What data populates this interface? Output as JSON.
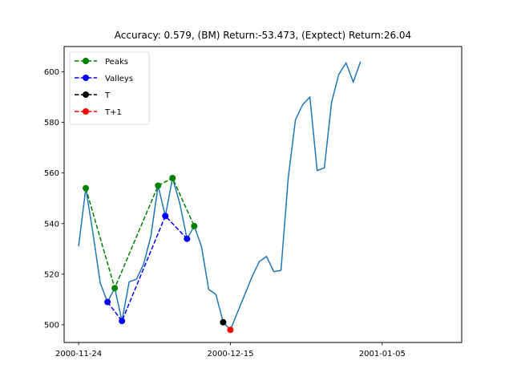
{
  "chart_data": {
    "type": "line",
    "title": "Accuracy: 0.579, (BM) Return:-53.473, (Exptect) Return:26.04",
    "xlabel": "",
    "ylabel": "",
    "x_start": "2000-11-24",
    "x_end": "2001-01-14",
    "xlim": [
      "2000-11-22",
      "2001-01-16"
    ],
    "ylim": [
      493,
      610
    ],
    "x_ticks": [
      "2000-11-24",
      "2000-12-15",
      "2001-01-05"
    ],
    "y_ticks": [
      500,
      520,
      540,
      560,
      580,
      600
    ],
    "legend_position": "upper-left",
    "series": [
      {
        "role": "price",
        "color": "#1f77b4",
        "style": "solid",
        "points": [
          [
            "2000-11-24",
            531
          ],
          [
            "2000-11-25",
            554
          ],
          [
            "2000-11-26",
            536
          ],
          [
            "2000-11-27",
            516.5
          ],
          [
            "2000-11-28",
            509
          ],
          [
            "2000-11-29",
            514.5
          ],
          [
            "2000-11-30",
            501.5
          ],
          [
            "2000-12-01",
            517
          ],
          [
            "2000-12-02",
            518
          ],
          [
            "2000-12-03",
            524
          ],
          [
            "2000-12-04",
            535
          ],
          [
            "2000-12-05",
            555
          ],
          [
            "2000-12-06",
            543
          ],
          [
            "2000-12-07",
            558
          ],
          [
            "2000-12-08",
            548
          ],
          [
            "2000-12-09",
            534
          ],
          [
            "2000-12-10",
            539
          ],
          [
            "2000-12-11",
            531
          ],
          [
            "2000-12-12",
            514
          ],
          [
            "2000-12-13",
            512
          ],
          [
            "2000-12-14",
            501
          ],
          [
            "2000-12-15",
            498
          ],
          [
            "2000-12-16",
            505
          ],
          [
            "2000-12-17",
            512
          ],
          [
            "2000-12-18",
            519
          ],
          [
            "2000-12-19",
            525
          ],
          [
            "2000-12-20",
            527
          ],
          [
            "2000-12-21",
            521
          ],
          [
            "2000-12-22",
            521.5
          ],
          [
            "2000-12-23",
            558
          ],
          [
            "2000-12-24",
            581
          ],
          [
            "2000-12-25",
            587
          ],
          [
            "2000-12-26",
            590
          ],
          [
            "2000-12-27",
            561
          ],
          [
            "2000-12-28",
            562
          ],
          [
            "2000-12-29",
            588
          ],
          [
            "2000-12-30",
            599
          ],
          [
            "2000-12-31",
            603.5
          ],
          [
            "2001-01-01",
            596
          ],
          [
            "2001-01-02",
            604
          ]
        ]
      },
      {
        "name": "Peaks",
        "color": "#008000",
        "style": "dashed",
        "points": [
          [
            "2000-11-25",
            554
          ],
          [
            "2000-11-29",
            514.5
          ],
          [
            "2000-12-05",
            555
          ],
          [
            "2000-12-07",
            558
          ],
          [
            "2000-12-10",
            539
          ]
        ]
      },
      {
        "name": "Valleys",
        "color": "#0000ff",
        "style": "dashed",
        "points": [
          [
            "2000-11-28",
            509
          ],
          [
            "2000-11-30",
            501.5
          ],
          [
            "2000-12-06",
            543
          ],
          [
            "2000-12-09",
            534
          ]
        ]
      },
      {
        "name": "T",
        "color": "#000000",
        "style": "dashed",
        "points": [
          [
            "2000-12-14",
            501
          ]
        ]
      },
      {
        "name": "T+1",
        "color": "#ff0000",
        "style": "dashed",
        "points": [
          [
            "2000-12-15",
            498
          ]
        ]
      }
    ]
  }
}
